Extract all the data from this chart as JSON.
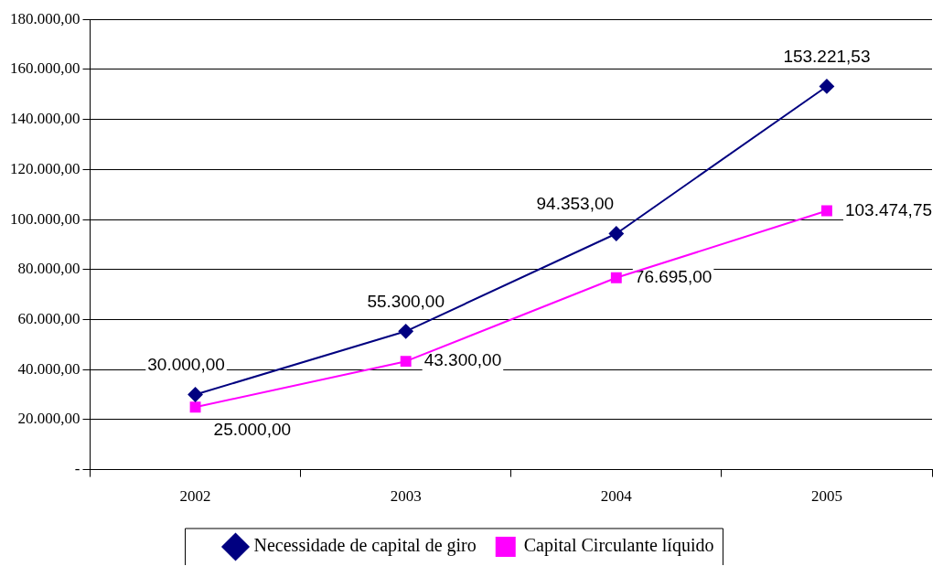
{
  "chart_data": {
    "type": "line",
    "categories": [
      "2002",
      "2003",
      "2004",
      "2005"
    ],
    "series": [
      {
        "name": "Necessidade de capital de giro",
        "color": "#000080",
        "marker": "diamond",
        "values": [
          30000,
          55300,
          94353,
          153221.53
        ],
        "value_labels": [
          "30.000,00",
          "55.300,00",
          "94.353,00",
          "153.221,53"
        ]
      },
      {
        "name": "Capital Circulante líquido",
        "color": "#ff00ff",
        "marker": "square",
        "values": [
          25000,
          43300,
          76695,
          103474.75
        ],
        "value_labels": [
          "25.000,00",
          "43.300,00",
          "76.695,00",
          "103.474,75"
        ]
      }
    ],
    "ylim": [
      0,
      180000
    ],
    "yticks": [
      {
        "value": 0,
        "label": "-"
      },
      {
        "value": 20000,
        "label": "20.000,00"
      },
      {
        "value": 40000,
        "label": "40.000,00"
      },
      {
        "value": 60000,
        "label": "60.000,00"
      },
      {
        "value": 80000,
        "label": "80.000,00"
      },
      {
        "value": 100000,
        "label": "100.000,00"
      },
      {
        "value": 120000,
        "label": "120.000,00"
      },
      {
        "value": 140000,
        "label": "140.000,00"
      },
      {
        "value": 160000,
        "label": "160.000,00"
      },
      {
        "value": 180000,
        "label": "180.000,00"
      }
    ],
    "grid": "y",
    "legend": "bottom"
  }
}
